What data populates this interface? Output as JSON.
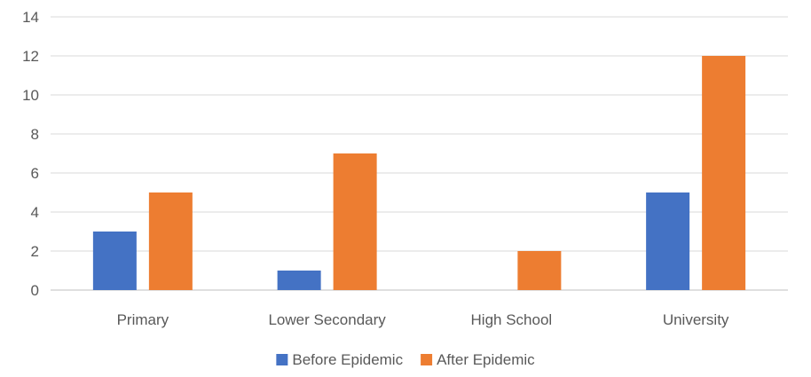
{
  "chart_data": {
    "type": "bar",
    "categories": [
      "Primary",
      "Lower Secondary",
      "High School",
      "University"
    ],
    "series": [
      {
        "name": "Before Epidemic",
        "values": [
          3,
          1,
          0,
          5
        ],
        "color": "#4472C4"
      },
      {
        "name": "After Epidemic",
        "values": [
          5,
          7,
          2,
          12
        ],
        "color": "#ED7D31"
      }
    ],
    "ylim": [
      0,
      14
    ],
    "yticks": [
      0,
      2,
      4,
      6,
      8,
      10,
      12,
      14
    ],
    "grid": true,
    "legend_position": "bottom",
    "title": "",
    "xlabel": "",
    "ylabel": ""
  }
}
